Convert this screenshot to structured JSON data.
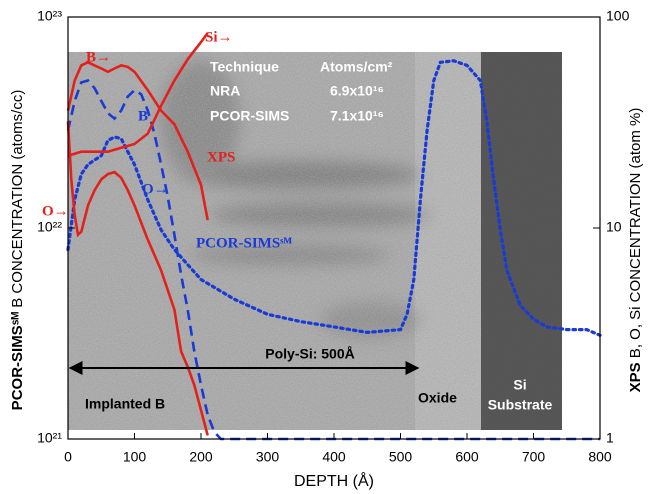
{
  "chart_data": {
    "type": "line",
    "xlabel": "DEPTH (Å)",
    "ylabel": [
      "PCOR-SIMSˢᴹ",
      " B CONCENTRATION (atoms/cc)"
    ],
    "y2label": [
      "XPS",
      " B, O, Si CONCENTRATION (atom %)"
    ],
    "xlim": [
      0,
      800
    ],
    "xticks": [
      0,
      100,
      200,
      300,
      400,
      500,
      600,
      700,
      800
    ],
    "ylim": [
      1e+21,
      1e+23
    ],
    "yticks": [
      {
        "value": 1e+21,
        "label": "10²¹"
      },
      {
        "value": 1e+22,
        "label": "10²²"
      },
      {
        "value": 1e+23,
        "label": "10²³"
      }
    ],
    "y2lim": [
      1,
      100
    ],
    "y2ticks": [
      1,
      10,
      100
    ],
    "yscale": "log",
    "y2scale": "log",
    "series": [
      {
        "color": "#1a3ad6",
        "style": "dashed",
        "axis": "y",
        "x": [
          0,
          10,
          20,
          30,
          40,
          50,
          60,
          70,
          80,
          90,
          100,
          110,
          120,
          130,
          140,
          150,
          160,
          170,
          180,
          190,
          200,
          210,
          220,
          230,
          250,
          300,
          350,
          400,
          450,
          500,
          550,
          600,
          650,
          700,
          750,
          800
        ],
        "values": [
          2.9e+22,
          4e+22,
          4.9e+22,
          5e+22,
          4.6e+22,
          4e+22,
          3.5e+22,
          3.3e+22,
          3.6e+22,
          4.2e+22,
          4.5e+22,
          4.3e+22,
          3.6e+22,
          2.8e+22,
          2e+22,
          1.4e+22,
          9.3e+21,
          6e+21,
          4.1e+21,
          2.6e+21,
          1.8e+21,
          1.3e+21,
          1.08e+21,
          1e+21,
          1e+21,
          1e+21,
          1e+21,
          1e+21,
          1e+21,
          1e+21,
          1e+21,
          1e+21,
          1e+21,
          1e+21,
          1e+21,
          1e+21
        ]
      },
      {
        "color": "#1a3ad6",
        "style": "dotted",
        "axis": "y",
        "x": [
          0,
          10,
          20,
          30,
          40,
          50,
          60,
          70,
          80,
          90,
          100,
          120,
          140,
          160,
          180,
          200,
          250,
          300,
          350,
          400,
          450,
          500,
          510,
          520,
          530,
          540,
          550,
          560,
          580,
          600,
          620,
          630,
          640,
          650,
          660,
          680,
          700,
          720,
          750,
          780,
          800
        ],
        "values": [
          7.9e+21,
          1.36e+22,
          1.8e+22,
          2e+22,
          2.1e+22,
          2.2e+22,
          2.6e+22,
          2.7e+22,
          2.65e+22,
          2.3e+22,
          2e+22,
          1.36e+22,
          9.8e+21,
          7.9e+21,
          6.7e+21,
          5.7e+21,
          4.6e+21,
          3.9e+21,
          3.6e+21,
          3.4e+21,
          3.2e+21,
          3.3e+21,
          3.9e+21,
          5.7e+21,
          1.36e+22,
          2.9e+22,
          5e+22,
          6.1e+22,
          6.2e+22,
          5.9e+22,
          5e+22,
          3.2e+22,
          1.7e+22,
          9.8e+21,
          6.3e+21,
          4.3e+21,
          3.7e+21,
          3.4e+21,
          3.3e+21,
          3.3e+21,
          3.1e+21
        ]
      },
      {
        "color": "#e3211c",
        "style": "solid",
        "axis": "y2",
        "x": [
          0,
          10,
          20,
          30,
          40,
          50,
          60,
          70,
          80,
          90,
          100,
          120,
          140,
          160,
          180,
          200,
          210
        ],
        "values": [
          36,
          50,
          59,
          61,
          59,
          57,
          55,
          57,
          59,
          58,
          55,
          45,
          36,
          31,
          23,
          16,
          10.9
        ]
      },
      {
        "color": "#e3211c",
        "style": "solid",
        "axis": "y2",
        "x": [
          0,
          5,
          10,
          15,
          20,
          30,
          40,
          50,
          60,
          70,
          80,
          90,
          100,
          120,
          140,
          160,
          170,
          180,
          190,
          200,
          210
        ],
        "values": [
          32,
          17,
          11.5,
          9.3,
          9.6,
          12.8,
          15.1,
          17,
          18,
          18.4,
          17.3,
          15.1,
          12.8,
          8.8,
          6.3,
          4.1,
          2.6,
          2.2,
          1.8,
          1.37,
          1.04
        ]
      },
      {
        "color": "#e3211c",
        "style": "solid",
        "axis": "y2",
        "x": [
          0,
          20,
          40,
          60,
          80,
          100,
          120,
          140,
          160,
          180,
          200,
          210
        ],
        "values": [
          22,
          23,
          23,
          23,
          24,
          25,
          28,
          38,
          50,
          63,
          76,
          84
        ]
      }
    ],
    "annotations": [
      {
        "text": "Si→",
        "color": "#e3211c"
      },
      {
        "text": "B→",
        "color": "#e3211c"
      },
      {
        "text": "B",
        "color": "#1a3ad6"
      },
      {
        "text": "XPS",
        "color": "#e3211c"
      },
      {
        "text": "O→",
        "color": "#1a3ad6"
      },
      {
        "text": "PCOR-SIMSˢᴹ",
        "color": "#1a3ad6"
      },
      {
        "text": "O→",
        "color": "#e3211c"
      }
    ],
    "table": {
      "header": [
        "Technique",
        "Atoms/cm²"
      ],
      "rows": [
        [
          "NRA",
          "6.9x10¹⁶"
        ],
        [
          "PCOR-SIMS",
          "7.1x10¹⁶"
        ]
      ]
    },
    "regions": [
      "Poly-Si: 500Å",
      "Implanted B",
      "Oxide",
      "Si",
      "Substrate"
    ]
  }
}
